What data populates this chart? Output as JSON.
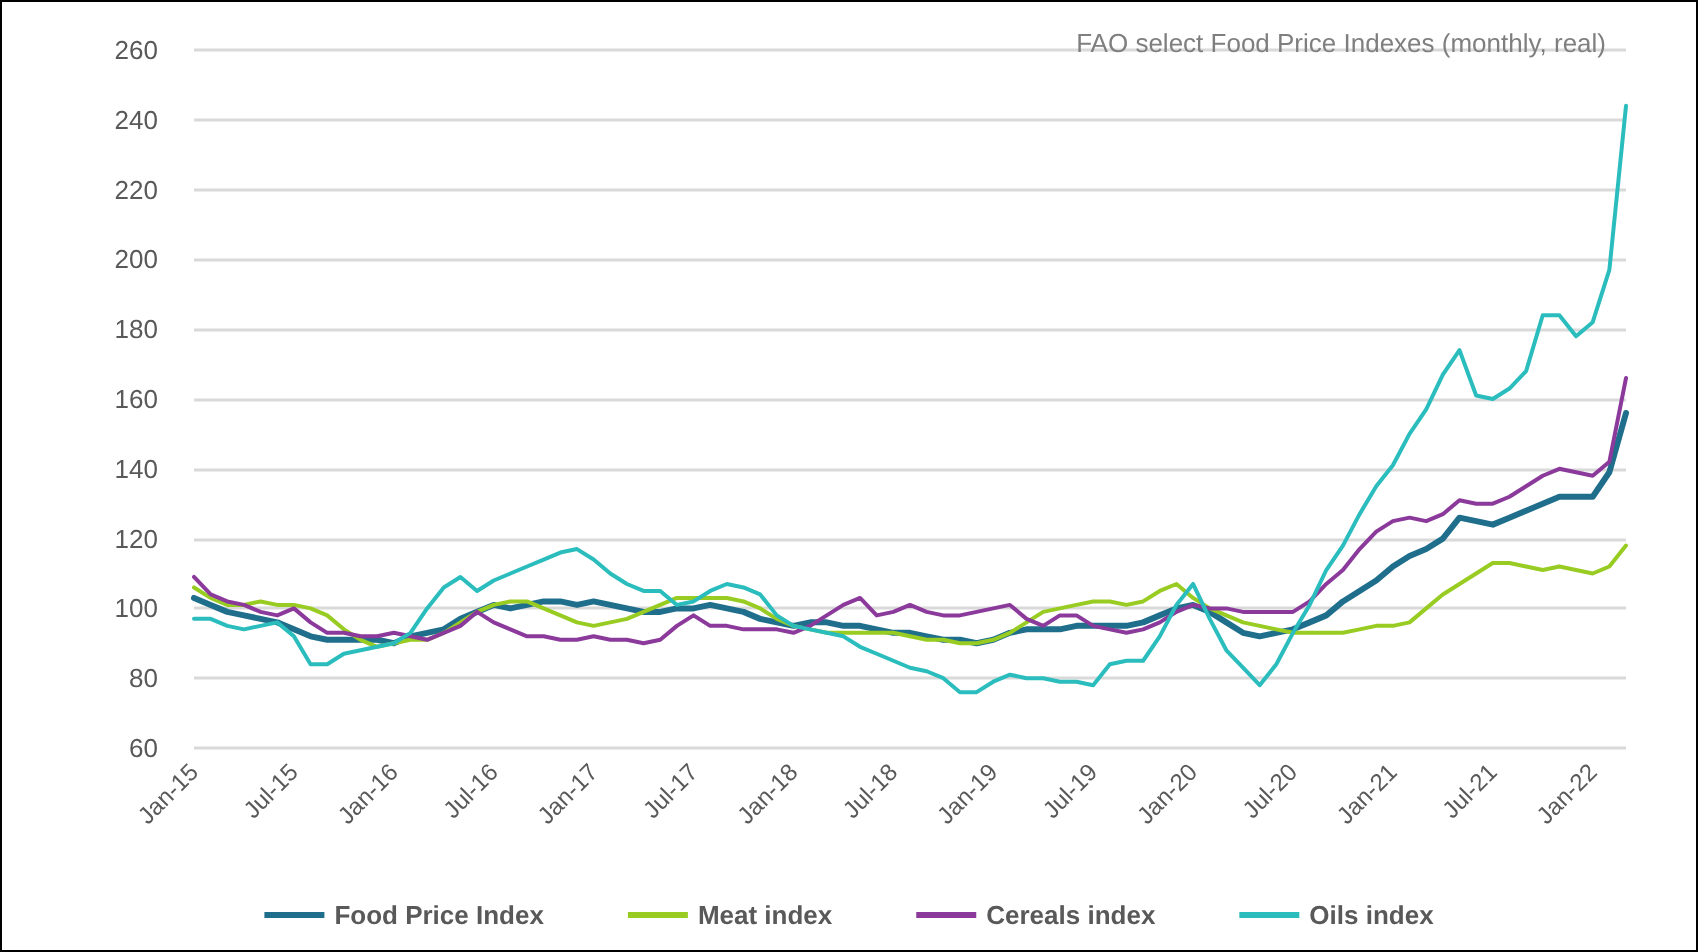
{
  "chart_data": {
    "type": "line",
    "title": "FAO select Food Price Indexes (monthly, real)",
    "categories": [
      "Jan-15",
      null,
      null,
      null,
      null,
      null,
      "Jul-15",
      null,
      null,
      null,
      null,
      null,
      "Jan-16",
      null,
      null,
      null,
      null,
      null,
      "Jul-16",
      null,
      null,
      null,
      null,
      null,
      "Jan-17",
      null,
      null,
      null,
      null,
      null,
      "Jul-17",
      null,
      null,
      null,
      null,
      null,
      "Jan-18",
      null,
      null,
      null,
      null,
      null,
      "Jul-18",
      null,
      null,
      null,
      null,
      null,
      "Jan-19",
      null,
      null,
      null,
      null,
      null,
      "Jul-19",
      null,
      null,
      null,
      null,
      null,
      "Jan-20",
      null,
      null,
      null,
      null,
      null,
      "Jul-20",
      null,
      null,
      null,
      null,
      null,
      "Jan-21",
      null,
      null,
      null,
      null,
      null,
      "Jul-21",
      null,
      null,
      null,
      null,
      null,
      "Jan-22",
      null,
      null
    ],
    "series": [
      {
        "name": "Food Price Index",
        "color": "#1f6e8c",
        "values": [
          103,
          101,
          99,
          98,
          97,
          96,
          94,
          92,
          91,
          91,
          91,
          91,
          90,
          92,
          93,
          94,
          97,
          99,
          101,
          100,
          101,
          102,
          102,
          101,
          102,
          101,
          100,
          99,
          99,
          100,
          100,
          101,
          100,
          99,
          97,
          96,
          95,
          96,
          96,
          95,
          95,
          94,
          93,
          93,
          92,
          91,
          91,
          90,
          91,
          93,
          94,
          94,
          94,
          95,
          95,
          95,
          95,
          96,
          98,
          100,
          101,
          99,
          96,
          93,
          92,
          93,
          94,
          96,
          98,
          102,
          105,
          108,
          112,
          115,
          117,
          120,
          126,
          125,
          124,
          126,
          128,
          130,
          132,
          132,
          132,
          139,
          156
        ]
      },
      {
        "name": "Meat index",
        "color": "#99cc22",
        "values": [
          106,
          103,
          101,
          101,
          102,
          101,
          101,
          100,
          98,
          94,
          91,
          89,
          90,
          91,
          91,
          93,
          96,
          99,
          101,
          102,
          102,
          100,
          98,
          96,
          95,
          96,
          97,
          99,
          101,
          103,
          103,
          103,
          103,
          102,
          100,
          97,
          95,
          94,
          93,
          93,
          93,
          93,
          93,
          92,
          91,
          91,
          90,
          90,
          91,
          93,
          96,
          99,
          100,
          101,
          102,
          102,
          101,
          102,
          105,
          107,
          103,
          100,
          98,
          96,
          95,
          94,
          93,
          93,
          93,
          93,
          94,
          95,
          95,
          96,
          100,
          104,
          107,
          110,
          113,
          113,
          112,
          111,
          112,
          111,
          110,
          112,
          118
        ]
      },
      {
        "name": "Cereals index",
        "color": "#8b3a9b",
        "values": [
          109,
          104,
          102,
          101,
          99,
          98,
          100,
          96,
          93,
          93,
          92,
          92,
          93,
          92,
          91,
          93,
          95,
          99,
          96,
          94,
          92,
          92,
          91,
          91,
          92,
          91,
          91,
          90,
          91,
          95,
          98,
          95,
          95,
          94,
          94,
          94,
          93,
          95,
          98,
          101,
          103,
          98,
          99,
          101,
          99,
          98,
          98,
          99,
          100,
          101,
          97,
          95,
          98,
          98,
          95,
          94,
          93,
          94,
          96,
          99,
          101,
          100,
          100,
          99,
          99,
          99,
          99,
          102,
          107,
          111,
          117,
          122,
          125,
          126,
          125,
          127,
          131,
          130,
          130,
          132,
          135,
          138,
          140,
          139,
          138,
          142,
          166
        ]
      },
      {
        "name": "Oils index",
        "color": "#2bbdbd",
        "values": [
          97,
          97,
          95,
          94,
          95,
          96,
          92,
          84,
          84,
          87,
          88,
          89,
          90,
          93,
          100,
          106,
          109,
          105,
          108,
          110,
          112,
          114,
          116,
          117,
          114,
          110,
          107,
          105,
          105,
          101,
          102,
          105,
          107,
          106,
          104,
          98,
          95,
          94,
          93,
          92,
          89,
          87,
          85,
          83,
          82,
          80,
          76,
          76,
          79,
          81,
          80,
          80,
          79,
          79,
          78,
          84,
          85,
          85,
          92,
          101,
          107,
          97,
          88,
          83,
          78,
          84,
          93,
          101,
          111,
          118,
          127,
          135,
          141,
          150,
          157,
          167,
          174,
          161,
          160,
          163,
          168,
          184,
          184,
          178,
          182,
          197,
          244
        ]
      }
    ],
    "ylim": [
      60,
      260
    ],
    "yticks": [
      60,
      80,
      100,
      120,
      140,
      160,
      180,
      200,
      220,
      240,
      260
    ],
    "grid": "y",
    "legend": "bottom",
    "marker": "none",
    "line_style": "solid"
  }
}
